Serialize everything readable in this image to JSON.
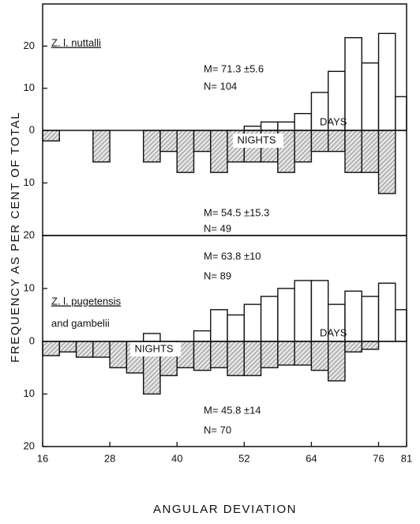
{
  "chart_data": [
    {
      "type": "histogram",
      "title": "Z. l. nuttalli",
      "ylabel": "FREQUENCY AS PER CENT OF TOTAL",
      "bins": [
        16,
        19,
        22,
        25,
        28,
        31,
        34,
        37,
        40,
        43,
        46,
        49,
        52,
        55,
        58,
        61,
        64,
        67,
        70,
        73,
        76,
        79,
        81
      ],
      "xlim": [
        16,
        81
      ],
      "ylim": [
        0,
        30
      ],
      "yticks": [
        0,
        10,
        20
      ],
      "y2lim": [
        0,
        20
      ],
      "y2ticks": [
        10
      ],
      "series": [
        {
          "name": "DAYS",
          "color": "#ffffff",
          "values": [
            0,
            0,
            0,
            0,
            0,
            0,
            0,
            0,
            0,
            0,
            0,
            0,
            1,
            2,
            2,
            4,
            9,
            14,
            22,
            16,
            23,
            8
          ]
        },
        {
          "name": "NIGHTS",
          "axis": "y2",
          "color": "#9a9a9a",
          "values": [
            2,
            0,
            0,
            6,
            0,
            0,
            6,
            4,
            8,
            4,
            8,
            6,
            6,
            6,
            8,
            6,
            4,
            4,
            8,
            8,
            12,
            0
          ]
        }
      ],
      "annotations": [
        "M= 71.3 ±5.6",
        "N= 104",
        "M= 54.5 ±15.3",
        "N= 49"
      ]
    },
    {
      "type": "histogram",
      "title": "Z. l. pugetensis",
      "subtitle": "and gambelii",
      "xlabel": "ANGULAR DEVIATION",
      "bins": [
        16,
        19,
        22,
        25,
        28,
        31,
        34,
        37,
        40,
        43,
        46,
        49,
        52,
        55,
        58,
        61,
        64,
        67,
        70,
        73,
        76,
        79,
        81
      ],
      "xlim": [
        16,
        81
      ],
      "xticks": [
        16,
        28,
        40,
        52,
        64,
        76,
        81
      ],
      "ylim": [
        0,
        20
      ],
      "yticks": [
        0,
        10,
        20
      ],
      "y2lim": [
        0,
        20
      ],
      "y2ticks": [
        10,
        20
      ],
      "series": [
        {
          "name": "DAYS",
          "color": "#ffffff",
          "values": [
            0,
            0,
            0,
            0,
            0,
            0,
            1.5,
            0,
            0,
            2,
            6,
            5,
            7,
            8.5,
            10,
            11.5,
            11.5,
            7,
            9.5,
            8.5,
            11,
            6
          ]
        },
        {
          "name": "NIGHTS",
          "axis": "y2",
          "color": "#9a9a9a",
          "values": [
            2.7,
            2,
            3,
            3,
            5,
            6,
            10,
            6.5,
            5,
            5.5,
            5,
            6.5,
            6.5,
            5,
            4.5,
            4.5,
            5.5,
            7.5,
            2,
            1.5,
            0,
            0
          ]
        }
      ],
      "annotations": [
        "M= 63.8 ±10",
        "N= 89",
        "M= 45.8 ±14",
        "N= 70"
      ]
    }
  ]
}
